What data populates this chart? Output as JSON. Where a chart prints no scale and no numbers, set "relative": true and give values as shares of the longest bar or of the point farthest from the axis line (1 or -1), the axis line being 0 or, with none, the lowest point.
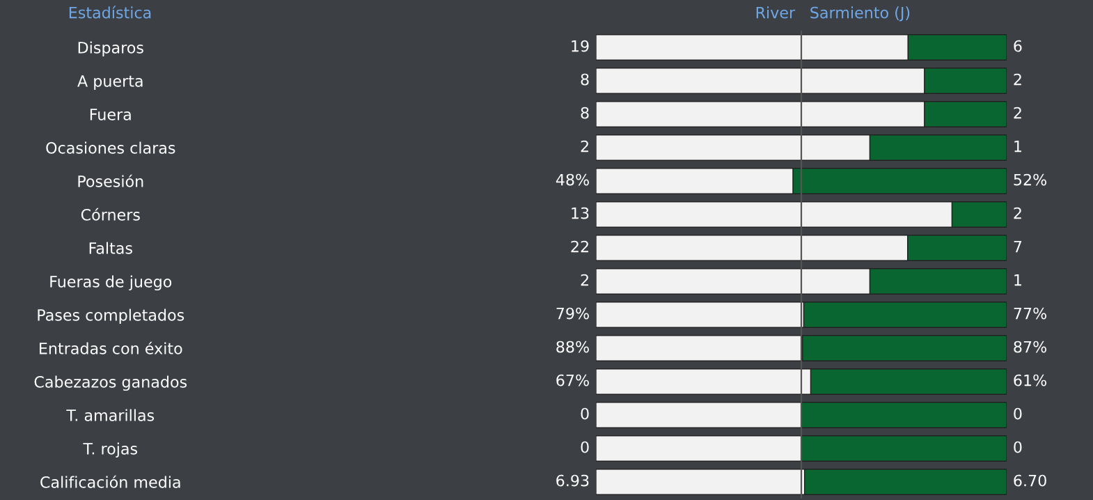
{
  "chart_data": {
    "type": "bar",
    "orientation": "horizontal",
    "stacked": true,
    "relative": true,
    "ylabel": "Estadística",
    "categories": [
      "Disparos",
      "A puerta",
      "Fuera",
      "Ocasiones claras",
      "Posesión",
      "Córners",
      "Faltas",
      "Fueras de juego",
      "Pases completados",
      "Entradas con éxito",
      "Cabezazos ganados",
      "T. amarillas",
      "T. rojas",
      "Calificación media"
    ],
    "series": [
      {
        "name": "River",
        "color": "#f2f2f2",
        "values": [
          0.76,
          0.8,
          0.8,
          0.667,
          0.48,
          0.867,
          0.759,
          0.667,
          0.506,
          0.503,
          0.523,
          0.5,
          0.5,
          0.508
        ]
      },
      {
        "name": "Sarmiento (J)",
        "color": "#0a6631",
        "values": [
          0.24,
          0.2,
          0.2,
          0.333,
          0.52,
          0.133,
          0.241,
          0.333,
          0.494,
          0.497,
          0.477,
          0.5,
          0.5,
          0.492
        ]
      }
    ],
    "annotations": [
      "19",
      "8",
      "8",
      "2",
      "48%",
      "13",
      "22",
      "2",
      "79%",
      "88%",
      "67%",
      "0",
      "0",
      "6.93",
      "6",
      "2",
      "2",
      "1",
      "52%",
      "2",
      "7",
      "1",
      "77%",
      "87%",
      "61%",
      "0",
      "0",
      "6.70"
    ],
    "ref_lines": [
      {
        "axis": "x",
        "value": 0.5,
        "color": "#555555"
      }
    ],
    "grid": false,
    "legend": "top"
  }
}
